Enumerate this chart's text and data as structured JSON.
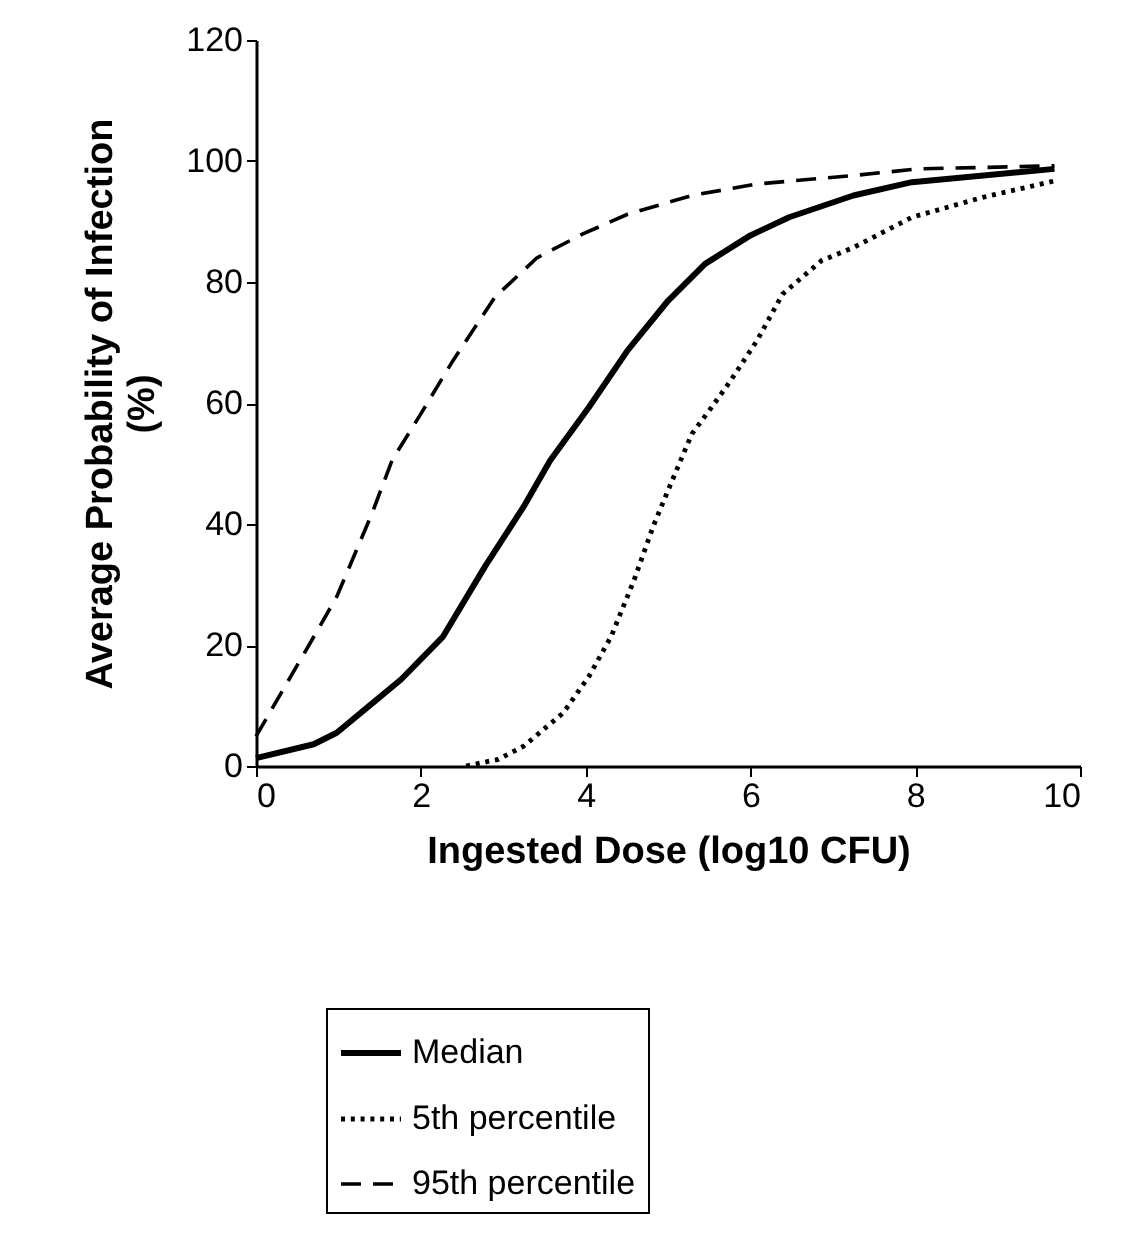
{
  "chart_data": {
    "type": "line",
    "xlabel": "Ingested Dose (log10 CFU)",
    "ylabel": "Average Probability of Infection (%)",
    "xlim": [
      0,
      10
    ],
    "xticks": [
      0,
      2,
      4,
      6,
      8,
      10
    ],
    "ylim": [
      0,
      120
    ],
    "yticks": [
      0,
      20,
      40,
      60,
      80,
      100,
      120
    ],
    "grid": false,
    "legend": "bottom",
    "marker": "none",
    "series": [
      {
        "name": "Median",
        "color": "#000000",
        "line_style": "solid",
        "x": [
          0,
          0.7,
          0.98,
          1.37,
          1.76,
          2.27,
          2.78,
          3.25,
          3.57,
          4.04,
          4.51,
          5.0,
          5.45,
          6.0,
          6.47,
          7.25,
          7.96,
          9.69
        ],
        "values": [
          1.3,
          3.6,
          5.5,
          9.9,
          14.3,
          21.4,
          33,
          42.9,
          50.5,
          59.3,
          68.7,
          76.9,
          83,
          87.7,
          90.7,
          94.3,
          96.5,
          98.7
        ]
      },
      {
        "name": "5th percentile",
        "color": "#000000",
        "line_style": "dotted",
        "x": [
          2.55,
          2.94,
          3.25,
          3.73,
          4.04,
          4.31,
          4.59,
          4.82,
          5.02,
          5.29,
          5.53,
          5.76,
          6.08,
          6.39,
          6.86,
          7.25,
          7.96,
          8.82,
          9.69
        ],
        "values": [
          0,
          1.1,
          3.3,
          8.8,
          14.8,
          21.4,
          30.8,
          39.6,
          46.2,
          54.9,
          59.3,
          63.7,
          70.3,
          78,
          83.5,
          85.7,
          90.7,
          94,
          96.7
        ]
      },
      {
        "name": "95th percentile",
        "color": "#000000",
        "line_style": "dashed",
        "x": [
          0,
          0.75,
          0.98,
          1.41,
          1.65,
          2.0,
          2.39,
          2.9,
          3.41,
          3.96,
          4.51,
          5.29,
          6.08,
          7.25,
          8.04,
          9.69
        ],
        "values": [
          4.9,
          22.5,
          28,
          41.8,
          50.5,
          58.2,
          67,
          77.5,
          84,
          87.9,
          91.2,
          94.3,
          96.2,
          97.6,
          98.7,
          99.2
        ]
      }
    ]
  }
}
